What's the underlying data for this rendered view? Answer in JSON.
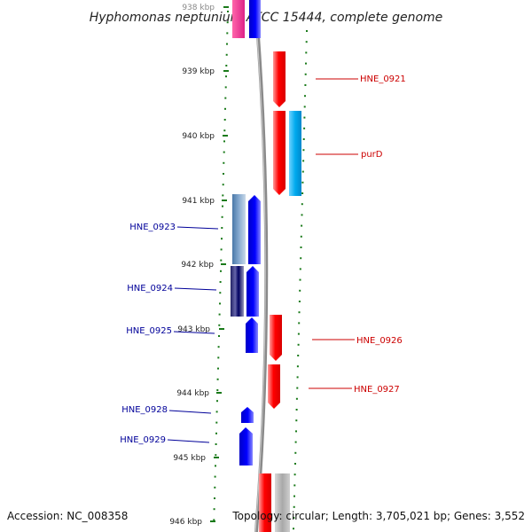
{
  "title": "Hyphomonas neptunium ATCC 15444, complete genome",
  "accession": "Accession: NC_008358",
  "topology": "Topology: circular; Length: 3,705,021 bp; Genes: 3,552",
  "kbp_labels": [
    "938 kbp",
    "939 kbp",
    "940 kbp",
    "941 kbp",
    "942 kbp",
    "943 kbp",
    "944 kbp",
    "945 kbp",
    "946 kbp"
  ],
  "colors": {
    "plus_strand": "#ff0000",
    "minus_strand": "#0000ff",
    "label_plus": "#cc0000",
    "label_minus": "#000099",
    "cds_tick": "#1a7a1a",
    "backbone": "#808080",
    "cyan_feature": "#00aaee",
    "magenta_feature": "#ee2a8a",
    "grey_feature": "#b0b0b0"
  },
  "genes": [
    {
      "label": "HNE_0921",
      "strand": "plus"
    },
    {
      "label": "purD",
      "strand": "plus"
    },
    {
      "label": "HNE_0923",
      "strand": "minus"
    },
    {
      "label": "HNE_0924",
      "strand": "minus"
    },
    {
      "label": "HNE_0925",
      "strand": "minus"
    },
    {
      "label": "HNE_0926",
      "strand": "plus"
    },
    {
      "label": "HNE_0927",
      "strand": "plus"
    },
    {
      "label": "HNE_0928",
      "strand": "minus"
    },
    {
      "label": "HNE_0929",
      "strand": "minus"
    }
  ]
}
